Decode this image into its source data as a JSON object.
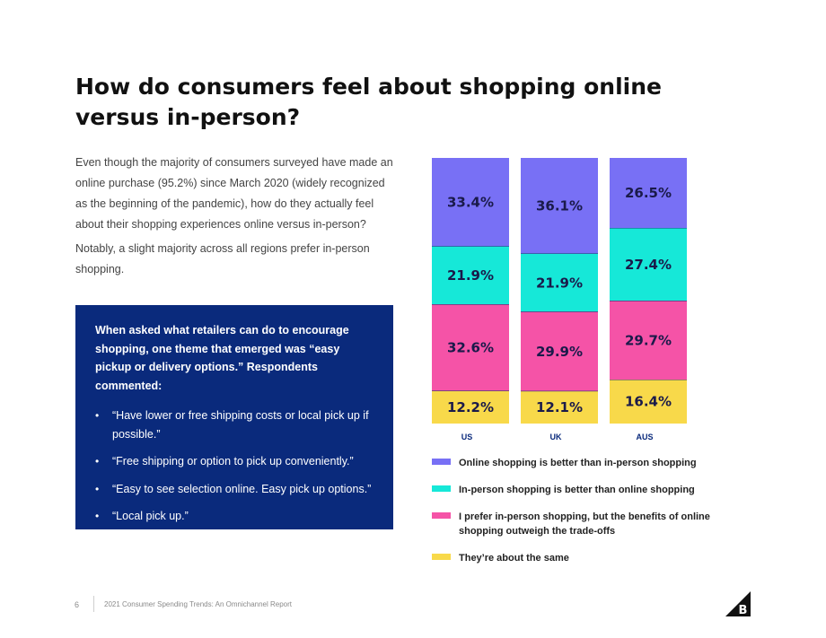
{
  "page": {
    "title": "How do consumers feel about shopping online versus in-person?",
    "intro_paragraph": "Even though the majority of consumers surveyed have made an online purchase (95.2%) since March 2020 (widely recognized as the beginning of the pandemic), how do they actually feel about their shopping experiences online versus in-person?",
    "second_paragraph": "Notably, a slight majority across all regions prefer in-person shopping."
  },
  "callout": {
    "heading": "When asked what retailers can do to encourage shopping, one theme that emerged was “easy pickup or delivery options.” Respondents commented:",
    "bullet_glyph": "•",
    "quotes": [
      "“Have lower or free shipping costs or local pick up if possible.”",
      "“Free shipping or option to pick up conveniently.”",
      "“Easy to see selection online. Easy pick up options.”",
      "“Local pick up.”"
    ]
  },
  "footer": {
    "page_number": "6",
    "report_title": "2021 Consumer Spending Trends: An Omnichannel Report"
  },
  "logo": {
    "icon": "bigcommerce-b-logo-icon",
    "letter": "B"
  },
  "chart_data": {
    "type": "bar",
    "stacked": true,
    "categories": [
      "US",
      "UK",
      "AUS"
    ],
    "series": [
      {
        "name": "Online shopping is better than in-person shopping",
        "color": "#7870f5",
        "values": [
          33.4,
          36.1,
          26.5
        ],
        "labels": [
          "33.4%",
          "36.1%",
          "26.5%"
        ]
      },
      {
        "name": "In-person shopping is better than online shopping",
        "color": "#16e8d8",
        "values": [
          21.9,
          21.9,
          27.4
        ],
        "labels": [
          "21.9%",
          "21.9%",
          "27.4%"
        ]
      },
      {
        "name": "I prefer in-person shopping, but the benefits of online shopping outweigh the trade-offs",
        "color": "#f553a7",
        "values": [
          32.6,
          29.9,
          29.7
        ],
        "labels": [
          "32.6%",
          "29.9%",
          "29.7%"
        ]
      },
      {
        "name": "They’re about the same",
        "color": "#f8d94a",
        "values": [
          12.2,
          12.1,
          16.4
        ],
        "labels": [
          "12.2%",
          "12.1%",
          "16.4%"
        ]
      }
    ],
    "legend_position": "bottom",
    "legend_lines": [
      [
        "Online shopping is better than in-person shopping"
      ],
      [
        "In-person shopping is better than online shopping"
      ],
      [
        "I prefer in-person shopping, but the benefits of online",
        "shopping outweigh the trade-offs"
      ],
      [
        "They’re about the same"
      ]
    ],
    "category_label_color": "#0a2a7c",
    "grid": false
  }
}
